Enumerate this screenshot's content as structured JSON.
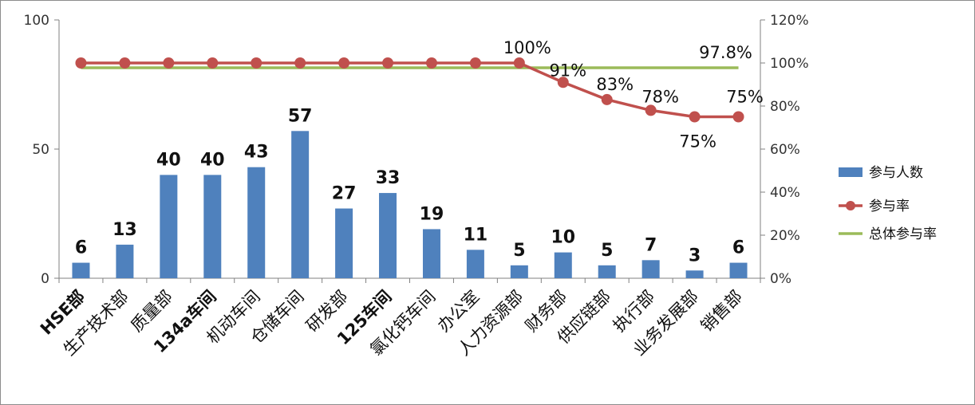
{
  "chart_data": {
    "type": "bar+line",
    "categories": [
      "HSE部",
      "生产技术部",
      "质量部",
      "134a车间",
      "机动车间",
      "仓储车间",
      "研发部",
      "125车间",
      "氯化钙车间",
      "办公室",
      "人力资源部",
      "财务部",
      "供应链部",
      "执行部",
      "业务发展部",
      "销售部"
    ],
    "bold_categories": [
      "HSE部",
      "134a车间",
      "125车间"
    ],
    "series": [
      {
        "name": "参与人数",
        "type": "bar",
        "axis": "left",
        "color": "#4f81bd",
        "values": [
          6,
          13,
          40,
          40,
          43,
          57,
          27,
          33,
          19,
          11,
          5,
          10,
          5,
          7,
          3,
          6
        ],
        "labels": [
          "6",
          "13",
          "40",
          "40",
          "43",
          "57",
          "27",
          "33",
          "19",
          "11",
          "5",
          "10",
          "5",
          "7",
          "3",
          "6"
        ]
      },
      {
        "name": "参与率",
        "type": "line",
        "axis": "right",
        "color": "#c0504d",
        "values": [
          100,
          100,
          100,
          100,
          100,
          100,
          100,
          100,
          100,
          100,
          100,
          91,
          83,
          78,
          75,
          75
        ],
        "labels": [
          "",
          "",
          "",
          "",
          "",
          "",
          "",
          "",
          "",
          "",
          "100%",
          "91%",
          "83%",
          "78%",
          "75%",
          "75%"
        ]
      },
      {
        "name": "总体参与率",
        "type": "line",
        "axis": "right",
        "color": "#9bbb59",
        "values": [
          97.8,
          97.8,
          97.8,
          97.8,
          97.8,
          97.8,
          97.8,
          97.8,
          97.8,
          97.8,
          97.8,
          97.8,
          97.8,
          97.8,
          97.8,
          97.8
        ],
        "labels": [
          "",
          "",
          "",
          "",
          "",
          "",
          "",
          "",
          "",
          "",
          "",
          "",
          "",
          "",
          "",
          "97.8%"
        ]
      }
    ],
    "y_left": {
      "min": 0,
      "max": 100,
      "ticks": [
        "0",
        "50",
        "100"
      ]
    },
    "y_right": {
      "min": 0,
      "max": 120,
      "ticks": [
        "0%",
        "20%",
        "40%",
        "60%",
        "80%",
        "100%",
        "120%"
      ]
    },
    "grid": false,
    "legend_position": "right"
  }
}
